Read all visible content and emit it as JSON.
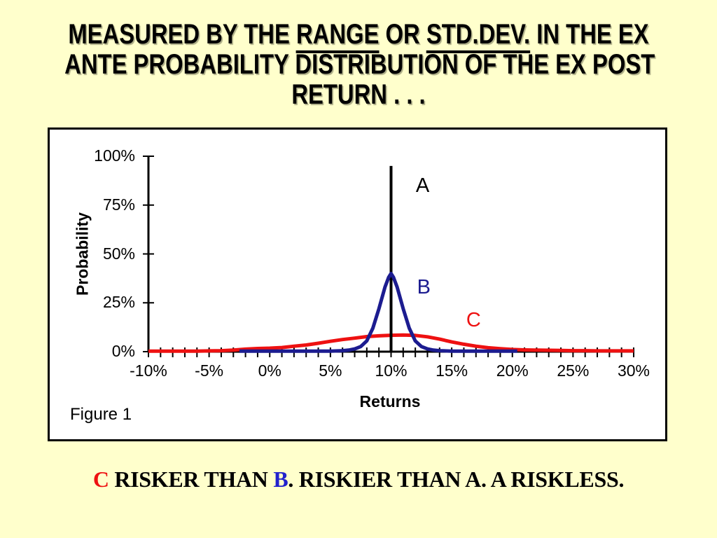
{
  "colors": {
    "background": "#FFFFCC",
    "chart_background": "#FFFFFF",
    "axis": "#000000",
    "series_a": "#000000",
    "series_b": "#1C1C90",
    "series_c": "#EE1111",
    "footer_c_letter": "#EE1111",
    "footer_b_letter": "#2222CC"
  },
  "title": {
    "l1a": "MEASURED BY THE ",
    "l1_range": "RANGE",
    "l1b": " OR ",
    "l1_stddev": "STD.DEV.",
    "l1c": " IN THE EX",
    "line2": "ANTE PROBABILITY DISTRIBUTION OF THE EX POST",
    "line3": "RETURN . . ."
  },
  "chart_data": {
    "type": "line",
    "figure_label": "Figure 1",
    "xlabel": "Returns",
    "ylabel": "Probability",
    "xlim": [
      -10,
      30
    ],
    "ylim": [
      0,
      100
    ],
    "grid": false,
    "legend_position": "none",
    "x_minor_tick_step": 1,
    "x_ticks": [
      {
        "value": -10,
        "label": "-10%"
      },
      {
        "value": -5,
        "label": "-5%"
      },
      {
        "value": 0,
        "label": "0%"
      },
      {
        "value": 5,
        "label": "5%"
      },
      {
        "value": 10,
        "label": "10%"
      },
      {
        "value": 15,
        "label": "15%"
      },
      {
        "value": 20,
        "label": "20%"
      },
      {
        "value": 25,
        "label": "25%"
      },
      {
        "value": 30,
        "label": "30%"
      }
    ],
    "y_ticks": [
      {
        "value": 0,
        "label": "0%"
      },
      {
        "value": 25,
        "label": "25%"
      },
      {
        "value": 50,
        "label": "50%"
      },
      {
        "value": 75,
        "label": "75%"
      },
      {
        "value": 100,
        "label": "100%"
      }
    ],
    "series": [
      {
        "name": "C",
        "color": "#EE1111",
        "width": 5,
        "points": [
          [
            -10,
            0.3
          ],
          [
            -9,
            0.3
          ],
          [
            -8,
            0.3
          ],
          [
            -7,
            0.3
          ],
          [
            -6,
            0.3
          ],
          [
            -5,
            0.4
          ],
          [
            -4,
            0.5
          ],
          [
            -3,
            0.8
          ],
          [
            -2,
            1.3
          ],
          [
            -1,
            1.6
          ],
          [
            0,
            1.8
          ],
          [
            1,
            2.1
          ],
          [
            2,
            2.8
          ],
          [
            3,
            3.4
          ],
          [
            4,
            4.3
          ],
          [
            5,
            5.3
          ],
          [
            6,
            6.2
          ],
          [
            7,
            6.9
          ],
          [
            8,
            7.7
          ],
          [
            9,
            8.1
          ],
          [
            10,
            8.4
          ],
          [
            11,
            8.5
          ],
          [
            12,
            8.3
          ],
          [
            13,
            7.6
          ],
          [
            14,
            6.4
          ],
          [
            15,
            5.0
          ],
          [
            16,
            3.8
          ],
          [
            17,
            2.8
          ],
          [
            18,
            2.0
          ],
          [
            19,
            1.5
          ],
          [
            20,
            1.1
          ],
          [
            21,
            0.9
          ],
          [
            22,
            0.8
          ],
          [
            23,
            0.7
          ],
          [
            24,
            0.6
          ],
          [
            25,
            0.5
          ],
          [
            26,
            0.5
          ],
          [
            27,
            0.4
          ],
          [
            28,
            0.4
          ],
          [
            29,
            0.4
          ],
          [
            30,
            0.4
          ]
        ]
      },
      {
        "name": "A",
        "color": "#000000",
        "width": 4,
        "points": [
          [
            10,
            0
          ],
          [
            10,
            95
          ]
        ]
      },
      {
        "name": "B",
        "color": "#1C1C90",
        "width": 5,
        "points": [
          [
            -2.5,
            0.3
          ],
          [
            0,
            0.3
          ],
          [
            5,
            0.3
          ],
          [
            6,
            0.5
          ],
          [
            6.5,
            0.8
          ],
          [
            7,
            1.4
          ],
          [
            7.5,
            2.6
          ],
          [
            8,
            5.5
          ],
          [
            8.5,
            12
          ],
          [
            9,
            22
          ],
          [
            9.5,
            33
          ],
          [
            9.8,
            38
          ],
          [
            10,
            40
          ],
          [
            10.2,
            38
          ],
          [
            10.5,
            33
          ],
          [
            11,
            22
          ],
          [
            11.5,
            12
          ],
          [
            12,
            5.5
          ],
          [
            12.5,
            2.6
          ],
          [
            13,
            1.4
          ],
          [
            13.5,
            0.8
          ],
          [
            14,
            0.5
          ],
          [
            15,
            0.3
          ],
          [
            20.4,
            0.3
          ]
        ]
      }
    ],
    "annotations": [
      {
        "text": "A",
        "x": 12.6,
        "p": 85,
        "color": "#000000"
      },
      {
        "text": "B",
        "x": 12.7,
        "p": 33,
        "color": "#1C1C90"
      },
      {
        "text": "C",
        "x": 16.8,
        "p": 16,
        "color": "#EE1111"
      }
    ]
  },
  "footer": {
    "c": "C",
    "t1": " RISKER THAN ",
    "b": "B",
    "t2": ". RISKIER THAN A. A RISKLESS."
  }
}
